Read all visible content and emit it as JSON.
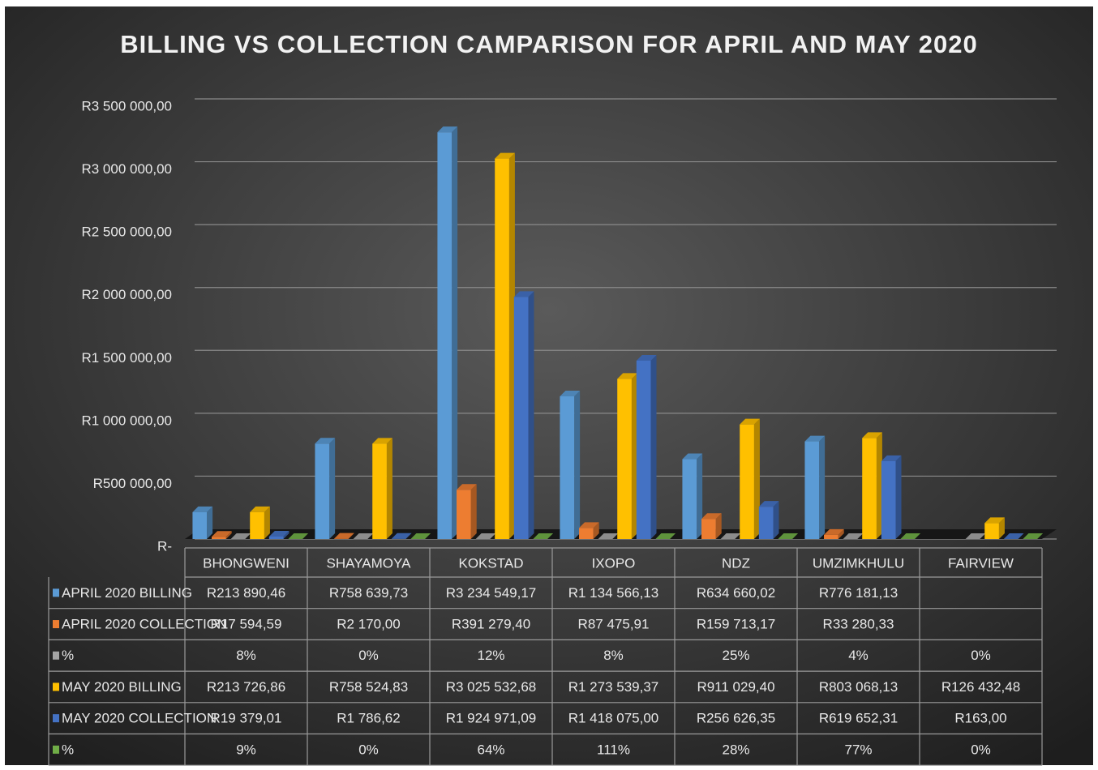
{
  "chart_data": {
    "type": "bar",
    "title": "BILLING VS COLLECTION CAMPARISON FOR APRIL AND MAY 2020",
    "categories": [
      "BHONGWENI",
      "SHAYAMOYA",
      "KOKSTAD",
      "IXOPO",
      "NDZ",
      "UMZIMKHULU",
      "FAIRVIEW"
    ],
    "ylim": [
      0,
      3500000
    ],
    "yticks": [
      {
        "value": 0,
        "label": "R-"
      },
      {
        "value": 500000,
        "label": "R500 000,00"
      },
      {
        "value": 1000000,
        "label": "R1 000 000,00"
      },
      {
        "value": 1500000,
        "label": "R1 500 000,00"
      },
      {
        "value": 2000000,
        "label": "R2 000 000,00"
      },
      {
        "value": 2500000,
        "label": "R2 500 000,00"
      },
      {
        "value": 3000000,
        "label": "R3 000 000,00"
      },
      {
        "value": 3500000,
        "label": "R3 500 000,00"
      }
    ],
    "grid": true,
    "series": [
      {
        "name": "APRIL 2020 BILLING",
        "color": "#5b9bd5",
        "values": [
          213890.46,
          758639.73,
          3234549.17,
          1134566.13,
          634660.02,
          776181.13,
          null
        ],
        "value_labels": [
          "R213 890,46",
          "R758 639,73",
          "R3 234 549,17",
          "R1 134 566,13",
          "R634 660,02",
          "R776 181,13",
          null
        ]
      },
      {
        "name": "APRIL 2020 COLLECTION",
        "color": "#ed7d31",
        "values": [
          17594.59,
          2170.0,
          391279.4,
          87475.91,
          159713.17,
          33280.33,
          null
        ],
        "value_labels": [
          "R17 594,59",
          "R2 170,00",
          "R391 279,40",
          "R87 475,91",
          "R159 713,17",
          "R33 280,33",
          null
        ]
      },
      {
        "name": "%",
        "color": "#a5a5a5",
        "values": [
          8,
          0,
          12,
          8,
          25,
          4,
          0
        ],
        "value_labels": [
          "8%",
          "0%",
          "12%",
          "8%",
          "25%",
          "4%",
          "0%"
        ]
      },
      {
        "name": "MAY 2020 BILLING",
        "color": "#ffc000",
        "values": [
          213726.86,
          758524.83,
          3025532.68,
          1273539.37,
          911029.4,
          803068.13,
          126432.48
        ],
        "value_labels": [
          "R213 726,86",
          "R758 524,83",
          "R3 025 532,68",
          "R1 273 539,37",
          "R911 029,40",
          "R803 068,13",
          "R126 432,48"
        ]
      },
      {
        "name": "MAY 2020 COLLECTION",
        "color": "#4472c4",
        "values": [
          19379.01,
          1786.62,
          1924971.09,
          1418075.0,
          256626.35,
          619652.31,
          163.0
        ],
        "value_labels": [
          "R19 379,01",
          "R1 786,62",
          "R1 924 971,09",
          "R1 418 075,00",
          "R256 626,35",
          "R619 652,31",
          "R163,00"
        ]
      },
      {
        "name": "%",
        "color": "#70ad47",
        "values": [
          9,
          0,
          64,
          111,
          28,
          77,
          0
        ],
        "value_labels": [
          "9%",
          "0%",
          "64%",
          "111%",
          "28%",
          "77%",
          "0%"
        ]
      }
    ]
  }
}
